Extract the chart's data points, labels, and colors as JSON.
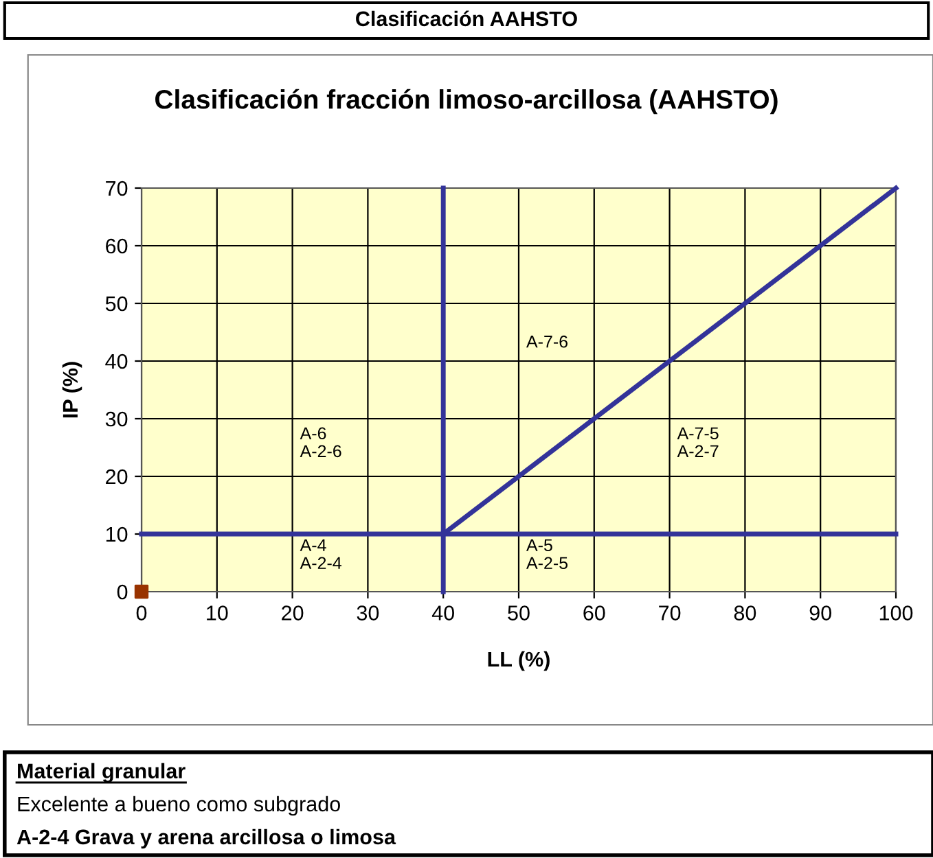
{
  "chart_data": {
    "type": "line",
    "title": "Clasificación AAHSTO",
    "subtitle": "Clasificación fracción limoso-arcillosa (AAHSTO)",
    "xlabel": "LL (%)",
    "ylabel": "IP (%)",
    "xlim": [
      0,
      100
    ],
    "xticks": [
      0,
      10,
      20,
      30,
      40,
      50,
      60,
      70,
      80,
      90,
      100
    ],
    "ylim": [
      0,
      70
    ],
    "yticks": [
      0,
      10,
      20,
      30,
      40,
      50,
      60,
      70
    ],
    "grid": true,
    "legend": false,
    "series": [
      {
        "color": "#333399",
        "x": [
          40,
          40
        ],
        "values": [
          0,
          70
        ],
        "marker": "none",
        "line_style": "solid"
      },
      {
        "color": "#333399",
        "x": [
          0,
          100
        ],
        "values": [
          10,
          10
        ],
        "marker": "none",
        "line_style": "solid"
      },
      {
        "color": "#333399",
        "x": [
          40,
          100
        ],
        "values": [
          10,
          70
        ],
        "marker": "none",
        "line_style": "solid"
      },
      {
        "type": "scatter",
        "color": "#993300",
        "x": [
          0
        ],
        "values": [
          0
        ],
        "marker": "square"
      }
    ],
    "annotations": [
      "A-7-6",
      "A-6\nA-2-6",
      "A-7-5\nA-2-7",
      "A-4\nA-2-4",
      "A-5\nA-2-5",
      "Material granular",
      "Excelente a bueno como subgrado",
      "A-2-4 Grava y arena arcillosa o limosa"
    ]
  }
}
